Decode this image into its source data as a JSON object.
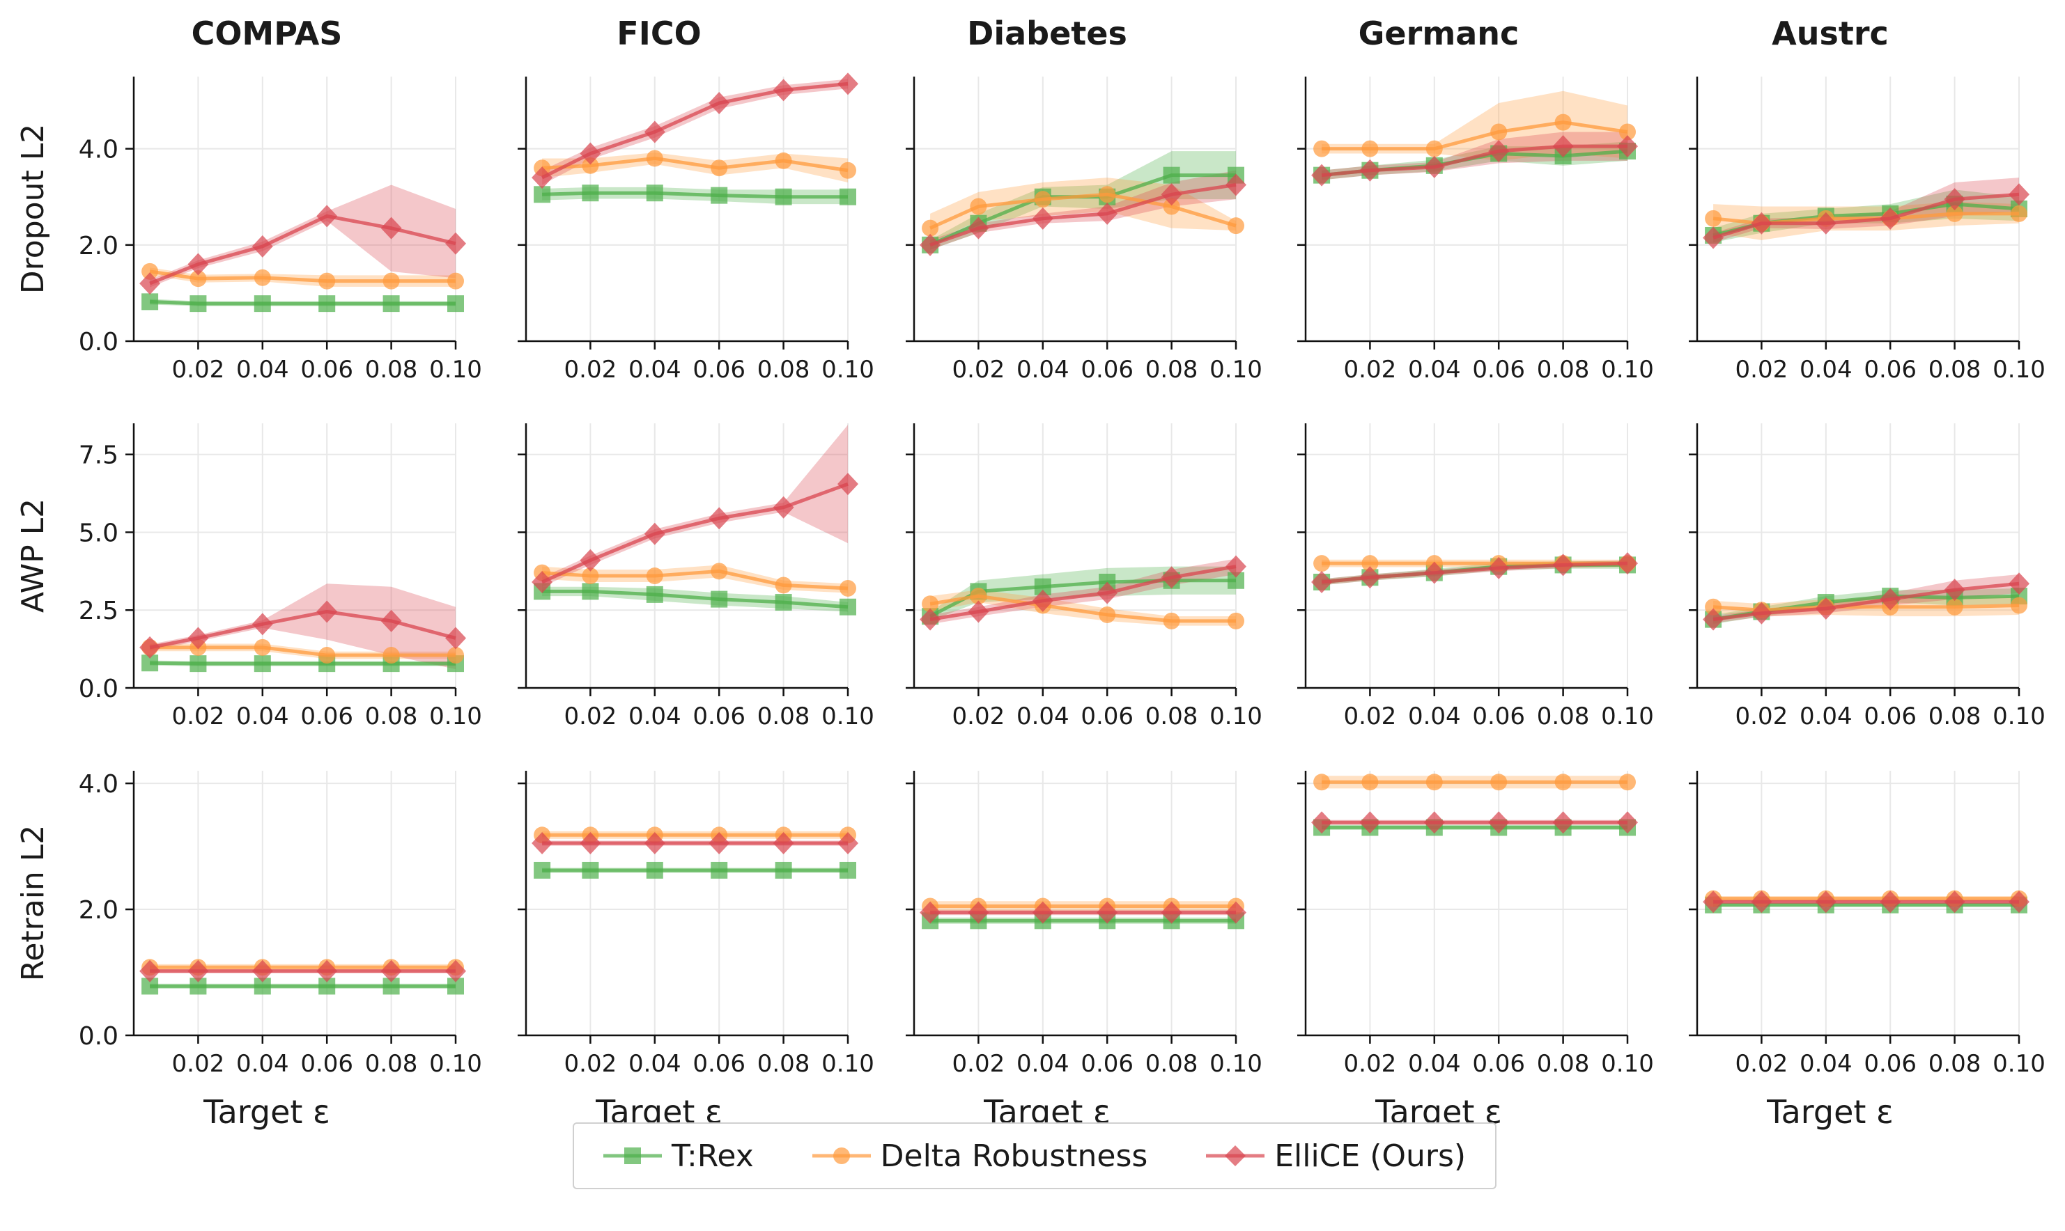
{
  "colors": {
    "trex": "#4daf4a",
    "delta": "#ff9a3c",
    "ellice": "#d9454f"
  },
  "xlabel": "Target ε",
  "xticks": [
    "0.02",
    "0.04",
    "0.06",
    "0.08",
    "0.10"
  ],
  "legend": [
    {
      "key": "trex",
      "label": "T:Rex",
      "marker": "square"
    },
    {
      "key": "delta",
      "label": "Delta Robustness",
      "marker": "circle"
    },
    {
      "key": "ellice",
      "label": "ElliCE (Ours)",
      "marker": "diamond"
    }
  ],
  "chart_data": {
    "type": "line",
    "x": [
      0.005,
      0.02,
      0.04,
      0.06,
      0.08,
      0.1
    ],
    "xlim": [
      0,
      0.1
    ],
    "datasets": [
      "COMPAS",
      "FICO",
      "Diabetes",
      "Germanc",
      "Austrc"
    ],
    "rows": [
      {
        "ylabel": "Dropout L2",
        "ylim": [
          0,
          5.5
        ],
        "yticks": [
          {
            "v": 0,
            "t": "0.0"
          },
          {
            "v": 2,
            "t": "2.0"
          },
          {
            "v": 4,
            "t": "4.0"
          }
        ],
        "panels": [
          {
            "trex": [
              0.82,
              0.78,
              0.78,
              0.78,
              0.78,
              0.78
            ],
            "trex_err": [
              0.06,
              0.05,
              0.05,
              0.05,
              0.05,
              0.05
            ],
            "delta": [
              1.45,
              1.3,
              1.32,
              1.25,
              1.25,
              1.25
            ],
            "delta_err": [
              0.08,
              0.08,
              0.08,
              0.12,
              0.12,
              0.12
            ],
            "ellice": [
              1.2,
              1.6,
              1.97,
              2.6,
              2.35,
              2.03
            ],
            "ellice_err": [
              0.08,
              0.08,
              0.1,
              0.1,
              0.9,
              0.72
            ]
          },
          {
            "trex": [
              3.05,
              3.08,
              3.08,
              3.03,
              3.0,
              3.0
            ],
            "trex_err": [
              0.12,
              0.12,
              0.12,
              0.12,
              0.15,
              0.15
            ],
            "delta": [
              3.6,
              3.65,
              3.8,
              3.6,
              3.75,
              3.55
            ],
            "delta_err": [
              0.2,
              0.15,
              0.12,
              0.15,
              0.15,
              0.25
            ],
            "ellice": [
              3.4,
              3.9,
              4.35,
              4.95,
              5.22,
              5.35
            ],
            "ellice_err": [
              0.15,
              0.12,
              0.12,
              0.12,
              0.1,
              0.1
            ]
          },
          {
            "trex": [
              2.0,
              2.45,
              3.0,
              3.0,
              3.45,
              3.45
            ],
            "trex_err": [
              0.1,
              0.2,
              0.2,
              0.25,
              0.5,
              0.5
            ],
            "delta": [
              2.35,
              2.8,
              2.95,
              3.05,
              2.8,
              2.4
            ],
            "delta_err": [
              0.3,
              0.3,
              0.35,
              0.35,
              0.45,
              0.1
            ],
            "ellice": [
              2.0,
              2.35,
              2.55,
              2.65,
              3.05,
              3.25
            ],
            "ellice_err": [
              0.1,
              0.1,
              0.1,
              0.15,
              0.25,
              0.3
            ]
          },
          {
            "trex": [
              3.45,
              3.55,
              3.65,
              3.9,
              3.85,
              3.95
            ],
            "trex_err": [
              0.1,
              0.1,
              0.12,
              0.15,
              0.2,
              0.2
            ],
            "delta": [
              4.0,
              4.0,
              4.0,
              4.35,
              4.55,
              4.35
            ],
            "delta_err": [
              0.1,
              0.1,
              0.1,
              0.6,
              0.65,
              0.55
            ],
            "ellice": [
              3.45,
              3.55,
              3.62,
              3.95,
              4.05,
              4.05
            ],
            "ellice_err": [
              0.1,
              0.1,
              0.1,
              0.25,
              0.3,
              0.3
            ]
          },
          {
            "trex": [
              2.2,
              2.45,
              2.6,
              2.65,
              2.85,
              2.75
            ],
            "trex_err": [
              0.15,
              0.2,
              0.15,
              0.2,
              0.3,
              0.25
            ],
            "delta": [
              2.55,
              2.45,
              2.55,
              2.55,
              2.65,
              2.65
            ],
            "delta_err": [
              0.3,
              0.35,
              0.25,
              0.25,
              0.25,
              0.2
            ],
            "ellice": [
              2.15,
              2.45,
              2.45,
              2.55,
              2.95,
              3.05
            ],
            "ellice_err": [
              0.1,
              0.1,
              0.12,
              0.15,
              0.35,
              0.35
            ]
          }
        ]
      },
      {
        "ylabel": "AWP L2",
        "ylim": [
          0,
          8.5
        ],
        "yticks": [
          {
            "v": 0,
            "t": "0.0"
          },
          {
            "v": 2.5,
            "t": "2.5"
          },
          {
            "v": 5,
            "t": "5.0"
          },
          {
            "v": 7.5,
            "t": "7.5"
          }
        ],
        "panels": [
          {
            "trex": [
              0.8,
              0.78,
              0.78,
              0.78,
              0.78,
              0.78
            ],
            "trex_err": [
              0.08,
              0.08,
              0.08,
              0.08,
              0.08,
              0.08
            ],
            "delta": [
              1.3,
              1.3,
              1.3,
              1.05,
              1.05,
              1.05
            ],
            "delta_err": [
              0.12,
              0.12,
              0.12,
              0.12,
              0.12,
              0.12
            ],
            "ellice": [
              1.3,
              1.6,
              2.05,
              2.45,
              2.15,
              1.6
            ],
            "ellice_err": [
              0.1,
              0.1,
              0.12,
              0.9,
              1.1,
              1.0
            ]
          },
          {
            "trex": [
              3.1,
              3.1,
              3.0,
              2.85,
              2.75,
              2.6
            ],
            "trex_err": [
              0.15,
              0.15,
              0.2,
              0.2,
              0.2,
              0.15
            ],
            "delta": [
              3.7,
              3.6,
              3.6,
              3.75,
              3.3,
              3.2
            ],
            "delta_err": [
              0.2,
              0.2,
              0.2,
              0.2,
              0.15,
              0.15
            ],
            "ellice": [
              3.4,
              4.1,
              4.95,
              5.45,
              5.8,
              6.55
            ],
            "ellice_err": [
              0.15,
              0.15,
              0.15,
              0.15,
              0.15,
              1.9
            ]
          },
          {
            "trex": [
              2.3,
              3.1,
              3.25,
              3.4,
              3.45,
              3.45
            ],
            "trex_err": [
              0.15,
              0.35,
              0.4,
              0.45,
              0.45,
              0.45
            ],
            "delta": [
              2.7,
              2.95,
              2.65,
              2.35,
              2.15,
              2.15
            ],
            "delta_err": [
              0.25,
              0.2,
              0.25,
              0.2,
              0.15,
              0.15
            ],
            "ellice": [
              2.2,
              2.45,
              2.8,
              3.05,
              3.55,
              3.9
            ],
            "ellice_err": [
              0.15,
              0.15,
              0.2,
              0.2,
              0.25,
              0.25
            ]
          },
          {
            "trex": [
              3.4,
              3.55,
              3.7,
              3.9,
              3.95,
              3.95
            ],
            "trex_err": [
              0.1,
              0.1,
              0.12,
              0.12,
              0.12,
              0.12
            ],
            "delta": [
              4.0,
              4.0,
              4.0,
              4.0,
              4.0,
              4.0
            ],
            "delta_err": [
              0.12,
              0.12,
              0.12,
              0.12,
              0.12,
              0.12
            ],
            "ellice": [
              3.4,
              3.55,
              3.7,
              3.85,
              3.95,
              4.0
            ],
            "ellice_err": [
              0.1,
              0.1,
              0.1,
              0.1,
              0.1,
              0.1
            ]
          },
          {
            "trex": [
              2.2,
              2.45,
              2.75,
              2.95,
              2.9,
              2.95
            ],
            "trex_err": [
              0.15,
              0.15,
              0.2,
              0.2,
              0.25,
              0.25
            ],
            "delta": [
              2.6,
              2.5,
              2.6,
              2.6,
              2.6,
              2.65
            ],
            "delta_err": [
              0.2,
              0.2,
              0.25,
              0.3,
              0.3,
              0.3
            ],
            "ellice": [
              2.2,
              2.4,
              2.55,
              2.85,
              3.15,
              3.35
            ],
            "ellice_err": [
              0.12,
              0.12,
              0.15,
              0.2,
              0.3,
              0.3
            ]
          }
        ]
      },
      {
        "ylabel": "Retrain L2",
        "ylim": [
          0,
          4.2
        ],
        "yticks": [
          {
            "v": 0,
            "t": "0.0"
          },
          {
            "v": 2,
            "t": "2.0"
          },
          {
            "v": 4,
            "t": "4.0"
          }
        ],
        "panels": [
          {
            "trex": [
              0.78,
              0.78,
              0.78,
              0.78,
              0.78,
              0.78
            ],
            "trex_err": [
              0.04,
              0.04,
              0.04,
              0.04,
              0.04,
              0.04
            ],
            "delta": [
              1.08,
              1.08,
              1.08,
              1.08,
              1.08,
              1.08
            ],
            "delta_err": [
              0.05,
              0.05,
              0.05,
              0.05,
              0.05,
              0.05
            ],
            "ellice": [
              1.02,
              1.02,
              1.02,
              1.02,
              1.02,
              1.02
            ],
            "ellice_err": [
              0.03,
              0.03,
              0.03,
              0.03,
              0.03,
              0.03
            ]
          },
          {
            "trex": [
              2.62,
              2.62,
              2.62,
              2.62,
              2.62,
              2.62
            ],
            "trex_err": [
              0.04,
              0.04,
              0.04,
              0.04,
              0.04,
              0.04
            ],
            "delta": [
              3.18,
              3.18,
              3.18,
              3.18,
              3.18,
              3.18
            ],
            "delta_err": [
              0.06,
              0.06,
              0.06,
              0.06,
              0.06,
              0.06
            ],
            "ellice": [
              3.05,
              3.05,
              3.05,
              3.05,
              3.05,
              3.05
            ],
            "ellice_err": [
              0.04,
              0.04,
              0.04,
              0.04,
              0.04,
              0.04
            ]
          },
          {
            "trex": [
              1.82,
              1.82,
              1.82,
              1.82,
              1.82,
              1.82
            ],
            "trex_err": [
              0.05,
              0.05,
              0.05,
              0.05,
              0.05,
              0.05
            ],
            "delta": [
              2.05,
              2.05,
              2.05,
              2.05,
              2.05,
              2.05
            ],
            "delta_err": [
              0.08,
              0.08,
              0.08,
              0.08,
              0.08,
              0.08
            ],
            "ellice": [
              1.95,
              1.95,
              1.95,
              1.95,
              1.95,
              1.95
            ],
            "ellice_err": [
              0.04,
              0.04,
              0.04,
              0.04,
              0.04,
              0.04
            ]
          },
          {
            "trex": [
              3.3,
              3.3,
              3.3,
              3.3,
              3.3,
              3.3
            ],
            "trex_err": [
              0.04,
              0.04,
              0.04,
              0.04,
              0.04,
              0.04
            ],
            "delta": [
              4.02,
              4.02,
              4.02,
              4.02,
              4.02,
              4.02
            ],
            "delta_err": [
              0.1,
              0.1,
              0.1,
              0.1,
              0.1,
              0.1
            ],
            "ellice": [
              3.38,
              3.38,
              3.38,
              3.38,
              3.38,
              3.38
            ],
            "ellice_err": [
              0.04,
              0.04,
              0.04,
              0.04,
              0.04,
              0.04
            ]
          },
          {
            "trex": [
              2.07,
              2.07,
              2.07,
              2.07,
              2.07,
              2.07
            ],
            "trex_err": [
              0.03,
              0.03,
              0.03,
              0.03,
              0.03,
              0.03
            ],
            "delta": [
              2.17,
              2.17,
              2.17,
              2.17,
              2.17,
              2.17
            ],
            "delta_err": [
              0.04,
              0.04,
              0.04,
              0.04,
              0.04,
              0.04
            ],
            "ellice": [
              2.12,
              2.12,
              2.12,
              2.12,
              2.12,
              2.12
            ],
            "ellice_err": [
              0.03,
              0.03,
              0.03,
              0.03,
              0.03,
              0.03
            ]
          }
        ]
      }
    ]
  }
}
